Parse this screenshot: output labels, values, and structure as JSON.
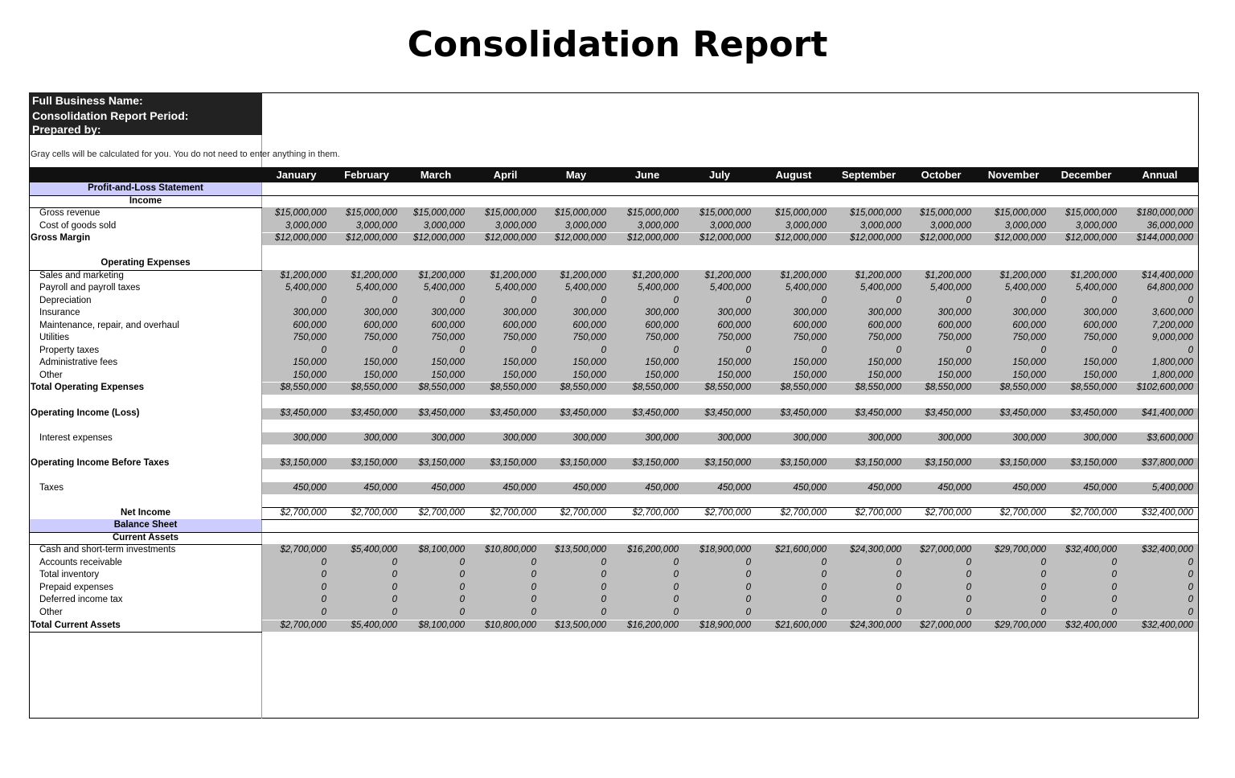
{
  "title": "Consolidation Report",
  "header_fields": [
    "Full Business Name:",
    "Consolidation Report Period:",
    "Prepared by:"
  ],
  "note": "Gray cells will be calculated for you. You do not need to enter anything in them.",
  "columns": [
    "January",
    "February",
    "March",
    "April",
    "May",
    "June",
    "July",
    "August",
    "September",
    "October",
    "November",
    "December",
    "Annual"
  ],
  "sections": [
    {
      "heading": "Profit-and-Loss Statement",
      "groups": [
        {
          "heading": "Income",
          "rows": [
            {
              "label": "Gross revenue",
              "values": [
                "$15,000,000",
                "$15,000,000",
                "$15,000,000",
                "$15,000,000",
                "$15,000,000",
                "$15,000,000",
                "$15,000,000",
                "$15,000,000",
                "$15,000,000",
                "$15,000,000",
                "$15,000,000",
                "$15,000,000",
                "$180,000,000"
              ]
            },
            {
              "label": "Cost of goods sold",
              "values": [
                "3,000,000",
                "3,000,000",
                "3,000,000",
                "3,000,000",
                "3,000,000",
                "3,000,000",
                "3,000,000",
                "3,000,000",
                "3,000,000",
                "3,000,000",
                "3,000,000",
                "3,000,000",
                "36,000,000"
              ]
            }
          ],
          "total": {
            "label": "Gross Margin",
            "values": [
              "$12,000,000",
              "$12,000,000",
              "$12,000,000",
              "$12,000,000",
              "$12,000,000",
              "$12,000,000",
              "$12,000,000",
              "$12,000,000",
              "$12,000,000",
              "$12,000,000",
              "$12,000,000",
              "$12,000,000",
              "$144,000,000"
            ]
          }
        },
        {
          "heading": "Operating Expenses",
          "rows": [
            {
              "label": "Sales and marketing",
              "values": [
                "$1,200,000",
                "$1,200,000",
                "$1,200,000",
                "$1,200,000",
                "$1,200,000",
                "$1,200,000",
                "$1,200,000",
                "$1,200,000",
                "$1,200,000",
                "$1,200,000",
                "$1,200,000",
                "$1,200,000",
                "$14,400,000"
              ]
            },
            {
              "label": "Payroll and payroll taxes",
              "values": [
                "5,400,000",
                "5,400,000",
                "5,400,000",
                "5,400,000",
                "5,400,000",
                "5,400,000",
                "5,400,000",
                "5,400,000",
                "5,400,000",
                "5,400,000",
                "5,400,000",
                "5,400,000",
                "64,800,000"
              ]
            },
            {
              "label": "Depreciation",
              "values": [
                "0",
                "0",
                "0",
                "0",
                "0",
                "0",
                "0",
                "0",
                "0",
                "0",
                "0",
                "0",
                "0"
              ]
            },
            {
              "label": "Insurance",
              "values": [
                "300,000",
                "300,000",
                "300,000",
                "300,000",
                "300,000",
                "300,000",
                "300,000",
                "300,000",
                "300,000",
                "300,000",
                "300,000",
                "300,000",
                "3,600,000"
              ]
            },
            {
              "label": "Maintenance, repair, and overhaul",
              "values": [
                "600,000",
                "600,000",
                "600,000",
                "600,000",
                "600,000",
                "600,000",
                "600,000",
                "600,000",
                "600,000",
                "600,000",
                "600,000",
                "600,000",
                "7,200,000"
              ]
            },
            {
              "label": "Utilities",
              "values": [
                "750,000",
                "750,000",
                "750,000",
                "750,000",
                "750,000",
                "750,000",
                "750,000",
                "750,000",
                "750,000",
                "750,000",
                "750,000",
                "750,000",
                "9,000,000"
              ]
            },
            {
              "label": "Property taxes",
              "values": [
                "0",
                "0",
                "0",
                "0",
                "0",
                "0",
                "0",
                "0",
                "0",
                "0",
                "0",
                "0",
                "0"
              ]
            },
            {
              "label": "Administrative fees",
              "values": [
                "150,000",
                "150,000",
                "150,000",
                "150,000",
                "150,000",
                "150,000",
                "150,000",
                "150,000",
                "150,000",
                "150,000",
                "150,000",
                "150,000",
                "1,800,000"
              ]
            },
            {
              "label": "Other",
              "values": [
                "150,000",
                "150,000",
                "150,000",
                "150,000",
                "150,000",
                "150,000",
                "150,000",
                "150,000",
                "150,000",
                "150,000",
                "150,000",
                "150,000",
                "1,800,000"
              ]
            }
          ],
          "total": {
            "label": "Total Operating Expenses",
            "values": [
              "$8,550,000",
              "$8,550,000",
              "$8,550,000",
              "$8,550,000",
              "$8,550,000",
              "$8,550,000",
              "$8,550,000",
              "$8,550,000",
              "$8,550,000",
              "$8,550,000",
              "$8,550,000",
              "$8,550,000",
              "$102,600,000"
            ]
          }
        },
        {
          "total": {
            "label": "Operating Income (Loss)",
            "values": [
              "$3,450,000",
              "$3,450,000",
              "$3,450,000",
              "$3,450,000",
              "$3,450,000",
              "$3,450,000",
              "$3,450,000",
              "$3,450,000",
              "$3,450,000",
              "$3,450,000",
              "$3,450,000",
              "$3,450,000",
              "$41,400,000"
            ]
          }
        },
        {
          "rows": [
            {
              "label": "Interest expenses",
              "values": [
                "300,000",
                "300,000",
                "300,000",
                "300,000",
                "300,000",
                "300,000",
                "300,000",
                "300,000",
                "300,000",
                "300,000",
                "300,000",
                "300,000",
                "$3,600,000"
              ]
            }
          ]
        },
        {
          "total": {
            "label": "Operating Income Before Taxes",
            "values": [
              "$3,150,000",
              "$3,150,000",
              "$3,150,000",
              "$3,150,000",
              "$3,150,000",
              "$3,150,000",
              "$3,150,000",
              "$3,150,000",
              "$3,150,000",
              "$3,150,000",
              "$3,150,000",
              "$3,150,000",
              "$37,800,000"
            ]
          }
        },
        {
          "rows": [
            {
              "label": "Taxes",
              "values": [
                "450,000",
                "450,000",
                "450,000",
                "450,000",
                "450,000",
                "450,000",
                "450,000",
                "450,000",
                "450,000",
                "450,000",
                "450,000",
                "450,000",
                "5,400,000"
              ]
            }
          ]
        },
        {
          "result": {
            "label": "Net Income",
            "values": [
              "$2,700,000",
              "$2,700,000",
              "$2,700,000",
              "$2,700,000",
              "$2,700,000",
              "$2,700,000",
              "$2,700,000",
              "$2,700,000",
              "$2,700,000",
              "$2,700,000",
              "$2,700,000",
              "$2,700,000",
              "$32,400,000"
            ]
          }
        }
      ]
    },
    {
      "heading": "Balance Sheet",
      "groups": [
        {
          "heading": "Current Assets",
          "rows": [
            {
              "label": "Cash and short-term investments",
              "values": [
                "$2,700,000",
                "$5,400,000",
                "$8,100,000",
                "$10,800,000",
                "$13,500,000",
                "$16,200,000",
                "$18,900,000",
                "$21,600,000",
                "$24,300,000",
                "$27,000,000",
                "$29,700,000",
                "$32,400,000",
                "$32,400,000"
              ]
            },
            {
              "label": "Accounts receivable",
              "values": [
                "0",
                "0",
                "0",
                "0",
                "0",
                "0",
                "0",
                "0",
                "0",
                "0",
                "0",
                "0",
                "0"
              ]
            },
            {
              "label": "Total inventory",
              "values": [
                "0",
                "0",
                "0",
                "0",
                "0",
                "0",
                "0",
                "0",
                "0",
                "0",
                "0",
                "0",
                "0"
              ]
            },
            {
              "label": "Prepaid expenses",
              "values": [
                "0",
                "0",
                "0",
                "0",
                "0",
                "0",
                "0",
                "0",
                "0",
                "0",
                "0",
                "0",
                "0"
              ]
            },
            {
              "label": "Deferred income tax",
              "values": [
                "0",
                "0",
                "0",
                "0",
                "0",
                "0",
                "0",
                "0",
                "0",
                "0",
                "0",
                "0",
                "0"
              ]
            },
            {
              "label": "Other",
              "values": [
                "0",
                "0",
                "0",
                "0",
                "0",
                "0",
                "0",
                "0",
                "0",
                "0",
                "0",
                "0",
                "0"
              ]
            }
          ],
          "total": {
            "label": "Total Current Assets",
            "values": [
              "$2,700,000",
              "$5,400,000",
              "$8,100,000",
              "$10,800,000",
              "$13,500,000",
              "$16,200,000",
              "$18,900,000",
              "$21,600,000",
              "$24,300,000",
              "$27,000,000",
              "$29,700,000",
              "$32,400,000",
              "$32,400,000"
            ]
          }
        }
      ]
    }
  ]
}
